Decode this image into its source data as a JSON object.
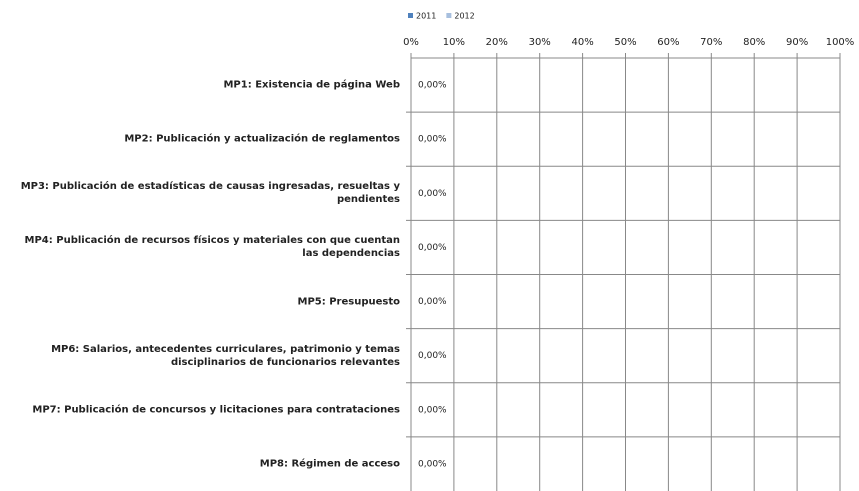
{
  "chart_data": {
    "type": "hbar",
    "categories": [
      "MP1: Existencia de página Web",
      "MP2: Publicación y actualización de reglamentos",
      "MP3: Publicación de estadísticas de causas ingresadas, resueltas y pendientes",
      "MP4: Publicación de recursos físicos y materiales con que cuentan las dependencias",
      "MP5: Presupuesto",
      "MP6: Salarios, antecedentes curriculares, patrimonio y temas disciplinarios de funcionarios relevantes",
      "MP7: Publicación de concursos y licitaciones para contrataciones",
      "MP8: Régimen de acceso"
    ],
    "series": [
      {
        "name": "2011",
        "color": "#4f81bd",
        "values": [
          0,
          0,
          0,
          0,
          0,
          0,
          0,
          0
        ],
        "value_labels": [
          "0,00%",
          "0,00%",
          "0,00%",
          "0,00%",
          "0,00%",
          "0,00%",
          "0,00%",
          "0,00%"
        ]
      },
      {
        "name": "2012",
        "color": "#a7bfde",
        "values": [
          0,
          0,
          0,
          0,
          0,
          0,
          0,
          0
        ]
      }
    ],
    "xlim": [
      0,
      100
    ],
    "xticks": [
      {
        "value": 0,
        "label": "0%"
      },
      {
        "value": 10,
        "label": "10%"
      },
      {
        "value": 20,
        "label": "20%"
      },
      {
        "value": 30,
        "label": "30%"
      },
      {
        "value": 40,
        "label": "40%"
      },
      {
        "value": 50,
        "label": "50%"
      },
      {
        "value": 60,
        "label": "60%"
      },
      {
        "value": 70,
        "label": "70%"
      },
      {
        "value": 80,
        "label": "80%"
      },
      {
        "value": 90,
        "label": "90%"
      },
      {
        "value": 100,
        "label": "100%"
      }
    ],
    "grid": true,
    "legend": "top"
  }
}
